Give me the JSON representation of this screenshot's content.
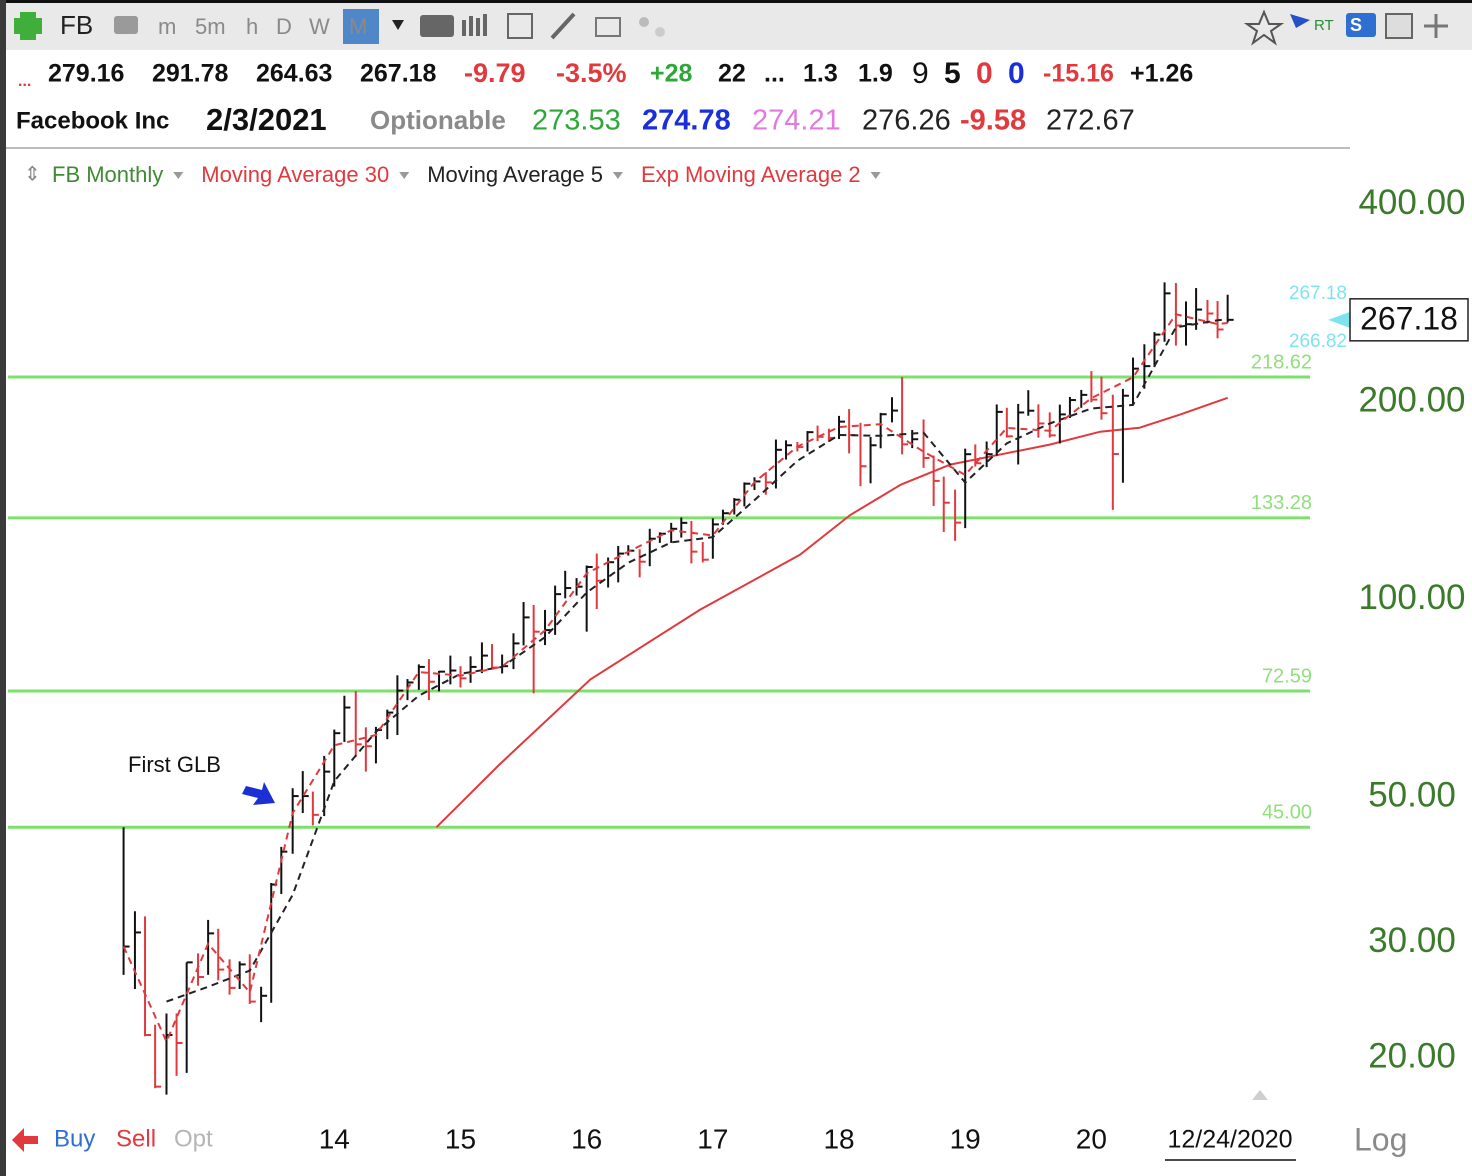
{
  "header": {
    "symbol": "FB",
    "timeframes": [
      "m",
      "5m",
      "h",
      "D",
      "W",
      "M"
    ],
    "flags": [
      "RT",
      "S"
    ],
    "quote": [
      "...",
      "279.16",
      "291.78",
      "264.63",
      "267.18",
      "-9.79",
      "-3.5%",
      "+28",
      "22",
      "...",
      "1.3",
      "1.9",
      "9",
      "5",
      "0",
      "0",
      "-15.16",
      "+1.26"
    ],
    "name_row": [
      "Facebook Inc",
      "2/3/2021",
      "Optionable",
      "273.53",
      "274.78",
      "274.21",
      "276.26",
      "-9.58",
      "272.67"
    ]
  },
  "footer": {
    "buttons": [
      "Buy",
      "Sell",
      "Opt"
    ],
    "scale": "Log"
  },
  "chart_data": {
    "type": "ohlc",
    "log_scale": true,
    "grid": false,
    "xlim": [
      2011.414,
      2022.01
    ],
    "ylim": [
      16.1,
      485
    ],
    "xticks": [
      {
        "value": 2014,
        "label": "14"
      },
      {
        "value": 2015,
        "label": "15"
      },
      {
        "value": 2016,
        "label": "16"
      },
      {
        "value": 2017,
        "label": "17"
      },
      {
        "value": 2018,
        "label": "18"
      },
      {
        "value": 2019,
        "label": "19"
      },
      {
        "value": 2020,
        "label": "20"
      }
    ],
    "x_end_label": "12/24/2020",
    "yticks": [
      {
        "value": 20,
        "label": "20.00"
      },
      {
        "value": 30,
        "label": "30.00"
      },
      {
        "value": 50,
        "label": "50.00"
      },
      {
        "value": 100,
        "label": "100.00"
      },
      {
        "value": 200,
        "label": "200.00"
      },
      {
        "value": 400,
        "label": "400.00"
      }
    ],
    "hlines": [
      218.62,
      133.28,
      72.59,
      {
        "value": 45,
        "label": "45.00"
      }
    ],
    "hline_color": "#7ee06c",
    "price_tags": [
      267.18,
      266.82
    ],
    "last_price": 267.18,
    "annotation": "First GLB",
    "series": [
      {
        "name": "FB Monthly",
        "type": "ohlc",
        "color": "#111111",
        "down_color": "#e0393e",
        "legend_color": "#3f8a34",
        "x": [
          2012.33,
          2012.42,
          2012.5,
          2012.58,
          2012.67,
          2012.75,
          2012.83,
          2012.92,
          2013,
          2013.08,
          2013.17,
          2013.25,
          2013.33,
          2013.42,
          2013.5,
          2013.58,
          2013.67,
          2013.75,
          2013.83,
          2013.92,
          2014,
          2014.08,
          2014.17,
          2014.25,
          2014.33,
          2014.42,
          2014.5,
          2014.58,
          2014.67,
          2014.75,
          2014.83,
          2014.92,
          2015,
          2015.08,
          2015.17,
          2015.25,
          2015.33,
          2015.42,
          2015.5,
          2015.58,
          2015.67,
          2015.75,
          2015.83,
          2015.92,
          2016,
          2016.08,
          2016.17,
          2016.25,
          2016.33,
          2016.42,
          2016.5,
          2016.58,
          2016.67,
          2016.75,
          2016.83,
          2016.92,
          2017,
          2017.08,
          2017.17,
          2017.25,
          2017.33,
          2017.42,
          2017.5,
          2017.58,
          2017.67,
          2017.75,
          2017.83,
          2017.92,
          2018,
          2018.08,
          2018.17,
          2018.25,
          2018.33,
          2018.42,
          2018.5,
          2018.58,
          2018.67,
          2018.75,
          2018.83,
          2018.92,
          2019,
          2019.08,
          2019.17,
          2019.25,
          2019.33,
          2019.42,
          2019.5,
          2019.58,
          2019.67,
          2019.75,
          2019.83,
          2019.92,
          2020,
          2020.08,
          2020.17,
          2020.25,
          2020.33,
          2020.42,
          2020.5,
          2020.58,
          2020.67,
          2020.75,
          2020.83,
          2020.92,
          2021,
          2021.08
        ],
        "high": [
          45.0,
          33.5,
          32.9,
          22.5,
          23.4,
          23.4,
          28.0,
          28.9,
          32.5,
          31.5,
          28.3,
          28.1,
          28.8,
          25.7,
          37.0,
          42.0,
          51.6,
          54.8,
          51.0,
          57.8,
          63.4,
          71.4,
          72.6,
          63.9,
          64.0,
          68.0,
          76.7,
          75.7,
          79.7,
          81.2,
          77.9,
          82.2,
          79.2,
          82.0,
          86.1,
          85.6,
          82.5,
          88.9,
          99.2,
          98.2,
          96.5,
          105.1,
          110.7,
          107.9,
          112.8,
          117.6,
          116.0,
          120.8,
          121.1,
          119.4,
          128.3,
          126.7,
          131.0,
          133.5,
          131.9,
          122.5,
          133.1,
          137.2,
          142.9,
          151.0,
          153.7,
          156.5,
          175.5,
          175.0,
          174.0,
          180.8,
          184.3,
          182.3,
          190.7,
          195.3,
          186.1,
          177.1,
          192.7,
          203.6,
          218.6,
          181.5,
          188.3,
          165.9,
          154.1,
          147.2,
          170.0,
          172.5,
          174.3,
          198.5,
          196.2,
          198.9,
          208.7,
          198.6,
          193.1,
          198.4,
          203.8,
          208.9,
          223.2,
          218.8,
          205.4,
          209.7,
          234.0,
          245.2,
          255.9,
          304.7,
          304.0,
          285.0,
          298.7,
          286.6,
          285.4,
          291.78
        ],
        "low": [
          26.8,
          25.5,
          21.6,
          18.0,
          17.6,
          18.8,
          19.0,
          25.8,
          26.8,
          26.3,
          25.0,
          25.5,
          24.2,
          22.7,
          24.3,
          35.6,
          41.0,
          47.3,
          45.3,
          46.8,
          51.9,
          60.7,
          57.6,
          54.7,
          56.3,
          61.3,
          62.2,
          70.3,
          72.9,
          70.3,
          72.5,
          74.3,
          73.5,
          74.7,
          77.3,
          78.3,
          77.2,
          78.4,
          85.2,
          72.0,
          85.3,
          88.4,
          100.5,
          101.5,
          89.4,
          96.8,
          104.4,
          106.3,
          116.8,
          108.2,
          112.5,
          122.1,
          122.1,
          124.4,
          113.6,
          114.0,
          115.5,
          130.1,
          134.9,
          138.8,
          147.0,
          144.6,
          147.8,
          163.6,
          168.3,
          168.3,
          174.5,
          174.0,
          175.8,
          167.2,
          149.0,
          150.5,
          170.2,
          186.4,
          166.6,
          170.3,
          158.9,
          139.0,
          126.9,
          123.0,
          128.6,
          159.6,
          159.3,
          165.9,
          176.7,
          160.8,
          190.8,
          176.7,
          176.7,
          173.1,
          189.3,
          196.2,
          200.0,
          188.2,
          137.1,
          150.8,
          198.8,
          209.8,
          226.3,
          247.4,
          244.1,
          244.1,
          258.0,
          263.8,
          250.4,
          264.63
        ],
        "close": [
          29.6,
          31.1,
          21.7,
          18.1,
          21.7,
          21.1,
          28.0,
          26.6,
          31.0,
          27.3,
          25.6,
          27.8,
          24.4,
          24.9,
          36.8,
          41.3,
          50.2,
          50.2,
          47.0,
          54.7,
          62.6,
          68.5,
          60.2,
          59.8,
          63.3,
          67.3,
          72.7,
          74.8,
          79.0,
          75.0,
          77.7,
          78.0,
          75.9,
          79.0,
          82.2,
          78.8,
          79.2,
          85.8,
          94.0,
          89.4,
          89.9,
          102.0,
          104.2,
          104.7,
          112.2,
          106.9,
          114.1,
          117.6,
          118.8,
          114.3,
          123.9,
          126.1,
          128.3,
          131.0,
          118.4,
          115.1,
          130.3,
          135.5,
          142.1,
          150.3,
          151.5,
          151.0,
          169.3,
          172.0,
          170.9,
          180.1,
          177.2,
          176.5,
          186.9,
          178.3,
          159.8,
          172.0,
          191.8,
          194.3,
          172.6,
          175.7,
          164.5,
          151.8,
          140.6,
          131.1,
          166.7,
          161.5,
          166.7,
          193.4,
          177.5,
          193.0,
          194.2,
          185.7,
          178.1,
          191.7,
          201.6,
          205.3,
          201.9,
          192.5,
          166.8,
          204.7,
          225.1,
          227.1,
          253.7,
          293.2,
          261.9,
          263.1,
          277.0,
          273.2,
          258.3,
          267.18
        ]
      },
      {
        "name": "Moving Average 30",
        "type": "line",
        "color": "#e0393e",
        "dashed": false,
        "x": [
          2014.81,
          2015.31,
          2016.03,
          2016.9,
          2017.69,
          2018.09,
          2018.49,
          2018.88,
          2019.27,
          2019.67,
          2020.07,
          2020.38,
          2020.7,
          2021.08
        ],
        "values": [
          45.0,
          56.1,
          75.6,
          96.6,
          117.1,
          134.7,
          149.8,
          160.7,
          166.4,
          172.4,
          180.4,
          182.9,
          191.5,
          203.2
        ]
      },
      {
        "name": "Moving Average 5",
        "type": "line",
        "color": "#222222",
        "dashed": true,
        "x": [
          2012.67,
          2013,
          2013.33,
          2013.67,
          2014,
          2014.33,
          2014.67,
          2015,
          2015.33,
          2015.67,
          2016,
          2016.33,
          2016.67,
          2017,
          2017.33,
          2017.67,
          2018,
          2018.33,
          2018.67,
          2019,
          2019.33,
          2019.67,
          2020,
          2020.33,
          2020.67,
          2021,
          2021.08
        ],
        "values": [
          24.4,
          25.7,
          27.2,
          35.5,
          52.9,
          62.9,
          71.4,
          77.1,
          79.0,
          87.7,
          102.6,
          113.9,
          122.3,
          124.6,
          141.9,
          162.9,
          178.3,
          177.8,
          179.8,
          150.9,
          173.2,
          185.7,
          195.7,
          198.2,
          260.2,
          266.7,
          267.8
        ]
      },
      {
        "name": "Exp Moving Average 2",
        "type": "line",
        "color": "#e0393e",
        "dashed": true,
        "x": [
          2012.33,
          2012.67,
          2013,
          2013.33,
          2013.67,
          2014,
          2014.33,
          2014.67,
          2015,
          2015.33,
          2015.67,
          2016,
          2016.33,
          2016.67,
          2017,
          2017.33,
          2017.67,
          2018,
          2018.33,
          2018.67,
          2019,
          2019.33,
          2019.67,
          2020,
          2020.33,
          2020.67,
          2021,
          2021.08
        ],
        "values": [
          29.6,
          21.2,
          29.9,
          25.2,
          47.3,
          60.0,
          62.2,
          77.6,
          76.6,
          79.1,
          89.8,
          109.7,
          118.4,
          127.6,
          125.3,
          151.1,
          171.2,
          183.4,
          185.2,
          168.2,
          155.0,
          182.8,
          181.0,
          203.0,
          218.3,
          272.4,
          263.2,
          264.2
        ]
      }
    ]
  }
}
